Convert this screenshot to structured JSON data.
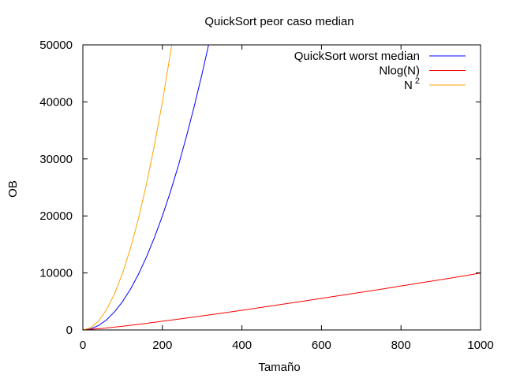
{
  "chart_data": {
    "type": "line",
    "title": "QuickSort peor caso median",
    "xlabel": "Tamaño",
    "ylabel": "OB",
    "xlim": [
      0,
      1000
    ],
    "ylim": [
      0,
      50000
    ],
    "x_ticks": [
      0,
      200,
      400,
      600,
      800,
      1000
    ],
    "y_ticks": [
      0,
      10000,
      20000,
      30000,
      40000,
      50000
    ],
    "grid": false,
    "legend_position": "top-right",
    "series": [
      {
        "name": "QuickSort worst median",
        "color": "#0000ff",
        "x": [
          0,
          20,
          40,
          60,
          80,
          100,
          120,
          140,
          160,
          180,
          200,
          220,
          240,
          260,
          280,
          300,
          320
        ],
        "y": [
          0,
          200,
          800,
          1800,
          3200,
          5000,
          7200,
          9800,
          12800,
          16200,
          20000,
          24200,
          28800,
          33800,
          39200,
          45000,
          51200
        ]
      },
      {
        "name": "Nlog(N)",
        "color": "#ff0000",
        "x": [
          0,
          50,
          100,
          150,
          200,
          250,
          300,
          350,
          400,
          450,
          500,
          550,
          600,
          650,
          700,
          750,
          800,
          850,
          900,
          950,
          1000
        ],
        "y": [
          0,
          282,
          664,
          1084,
          1529,
          1991,
          2468,
          2958,
          3458,
          3966,
          4483,
          5007,
          5537,
          6072,
          6613,
          7159,
          7715,
          8270,
          8830,
          9390,
          9966
        ]
      },
      {
        "name": "N",
        "name_sup": "2",
        "color": "#ffa500",
        "x": [
          0,
          20,
          40,
          60,
          80,
          100,
          120,
          140,
          160,
          180,
          200,
          224
        ],
        "y": [
          0,
          400,
          1600,
          3600,
          6400,
          10000,
          14400,
          19600,
          25600,
          32400,
          40000,
          50176
        ]
      }
    ]
  }
}
